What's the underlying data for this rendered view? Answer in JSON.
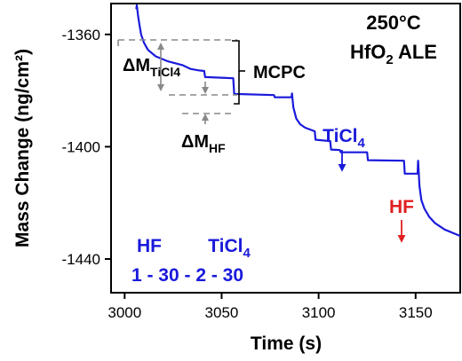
{
  "chart_data": {
    "type": "line",
    "xlabel": "Time (s)",
    "ylabel": "Mass Change (ng/cm²)",
    "xlim": [
      2993,
      3173
    ],
    "ylim": [
      -1452,
      -1349
    ],
    "xticks": [
      3000,
      3050,
      3100,
      3150
    ],
    "yticks": [
      -1360,
      -1400,
      -1440
    ],
    "grid": false,
    "colors": {
      "data": "#1a1adb",
      "hf": "#e02020",
      "ticl4": "#1a1adb",
      "text": "#000000",
      "bracket": "#888888"
    },
    "series": [
      {
        "values": [
          [
            3006.0,
            -1351.0
          ],
          [
            3006.3,
            -1349.6
          ],
          [
            3006.6,
            -1351.5
          ],
          [
            3007.0,
            -1353.8
          ],
          [
            3007.5,
            -1356.0
          ],
          [
            3008.5,
            -1360.0
          ],
          [
            3010.0,
            -1363.0
          ],
          [
            3012.0,
            -1365.5
          ],
          [
            3016.0,
            -1367.8
          ],
          [
            3022.0,
            -1369.5
          ],
          [
            3030.0,
            -1371.0
          ],
          [
            3034.0,
            -1372.3
          ],
          [
            3038.0,
            -1372.8
          ],
          [
            3041.0,
            -1373.0
          ],
          [
            3041.5,
            -1375.2
          ],
          [
            3056.0,
            -1375.6
          ],
          [
            3056.5,
            -1381.2
          ],
          [
            3077.0,
            -1381.6
          ],
          [
            3077.4,
            -1382.4
          ],
          [
            3086.0,
            -1382.4
          ],
          [
            3086.3,
            -1381.0
          ],
          [
            3086.6,
            -1383.5
          ],
          [
            3087.0,
            -1386.0
          ],
          [
            3088.5,
            -1390.0
          ],
          [
            3090.5,
            -1392.0
          ],
          [
            3093.0,
            -1393.2
          ],
          [
            3096.0,
            -1394.0
          ],
          [
            3098.0,
            -1394.5
          ],
          [
            3098.4,
            -1397.5
          ],
          [
            3106.0,
            -1398.0
          ],
          [
            3106.4,
            -1401.0
          ],
          [
            3111.0,
            -1401.2
          ],
          [
            3111.4,
            -1402.0
          ],
          [
            3125.0,
            -1402.0
          ],
          [
            3125.4,
            -1404.8
          ],
          [
            3144.0,
            -1405.0
          ],
          [
            3144.4,
            -1409.6
          ],
          [
            3151.0,
            -1409.6
          ],
          [
            3151.3,
            -1405.0
          ],
          [
            3151.6,
            -1409.0
          ],
          [
            3152.0,
            -1414.0
          ],
          [
            3153.0,
            -1419.0
          ],
          [
            3154.5,
            -1422.0
          ],
          [
            3157.0,
            -1425.0
          ],
          [
            3160.0,
            -1427.2
          ],
          [
            3165.0,
            -1429.5
          ],
          [
            3172.0,
            -1431.5
          ],
          [
            3180.0,
            -1433.8
          ],
          [
            3190.0,
            -1435.5
          ],
          [
            3196.0,
            -1436.0
          ],
          [
            3196.5,
            -1439.8
          ],
          [
            3205.0,
            -1440.0
          ]
        ]
      }
    ],
    "annotations": {
      "temp": "250°C",
      "film_pre": "HfO",
      "film_sub": "2",
      "film_post": " ALE",
      "delta_ticl4_main": "ΔM",
      "delta_ticl4_sub": "TiCl4",
      "delta_hf_main": "ΔM",
      "delta_hf_sub": "HF",
      "mcpc": "MCPC",
      "arrow_ticl4_main": "TiCl",
      "arrow_ticl4_sub": "4",
      "arrow_hf": "HF",
      "seq_hf": "HF",
      "seq_ticl4_main": "TiCl",
      "seq_ticl4_sub": "4",
      "seq": "1 - 30 - 2 - 30"
    }
  }
}
